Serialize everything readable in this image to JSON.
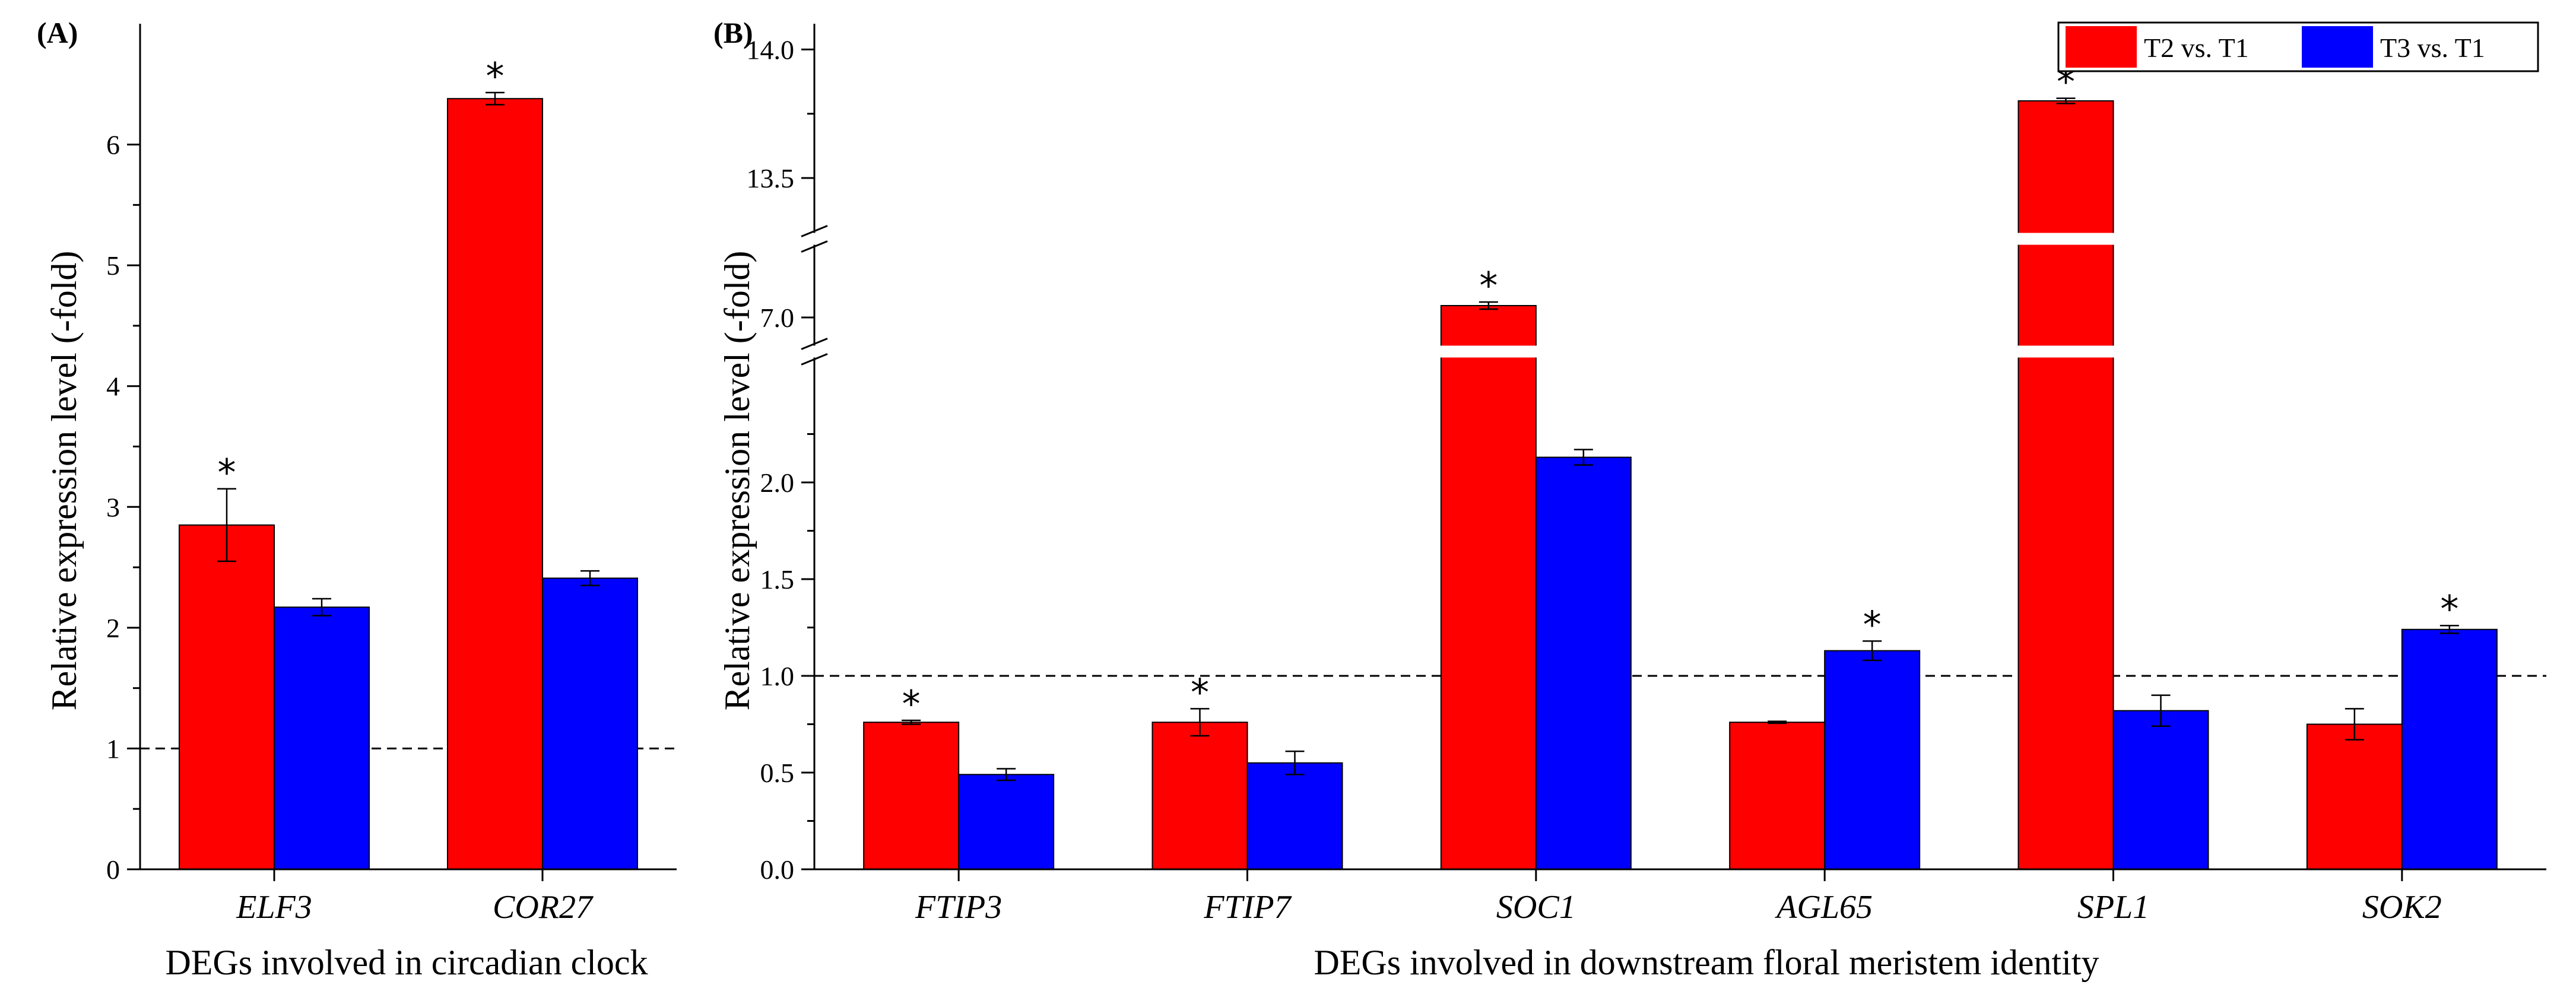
{
  "colors": {
    "t2": "#ff0000",
    "t3": "#0000ff",
    "axis": "#000000"
  },
  "legend": {
    "items": [
      "T2 vs. T1",
      "T3 vs. T1"
    ],
    "placement": "top-right"
  },
  "chart_data": [
    {
      "type": "bar",
      "panel_label": "(A)",
      "xlabel": "DEGs involved in circadian clock",
      "ylabel": "Relative expression level (-fold)",
      "ylim": [
        0,
        7
      ],
      "yticks": [
        0,
        1,
        2,
        3,
        4,
        5,
        6
      ],
      "ytick_labels": [
        "0",
        "1",
        "2",
        "3",
        "4",
        "5",
        "6"
      ],
      "reference_line": 1,
      "categories": [
        "ELF3",
        "COR27"
      ],
      "series": [
        {
          "name": "T2 vs. T1",
          "values": [
            2.85,
            6.38
          ],
          "errors": [
            0.3,
            0.05
          ],
          "significant": [
            true,
            true
          ]
        },
        {
          "name": "T3 vs. T1",
          "values": [
            2.17,
            2.41
          ],
          "errors": [
            0.07,
            0.06
          ],
          "significant": [
            false,
            false
          ]
        }
      ]
    },
    {
      "type": "bar",
      "panel_label": "(B)",
      "xlabel": "DEGs involved in downstream floral meristem identity",
      "ylabel": "Relative expression level (-fold)",
      "broken_axis": true,
      "segments": [
        {
          "range": [
            0,
            2.5
          ],
          "ticks": [
            0,
            0.5,
            1,
            1.5,
            2
          ],
          "tick_labels": [
            "0.0",
            "0.5",
            "1.0",
            "1.5",
            "2.0"
          ]
        },
        {
          "range": [
            7.0,
            7.15
          ],
          "ticks": [
            7.0
          ],
          "tick_labels": [
            "7.0"
          ]
        },
        {
          "range": [
            13.5,
            14.1
          ],
          "ticks": [
            13.5,
            14.0
          ],
          "tick_labels": [
            "13.5",
            "14.0"
          ]
        }
      ],
      "reference_line": 1,
      "categories": [
        "FTIP3",
        "FTIP7",
        "SOC1",
        "AGL65",
        "SPL1",
        "SOK2"
      ],
      "series": [
        {
          "name": "T2 vs. T1",
          "values": [
            0.76,
            0.76,
            7.1,
            0.76,
            13.8,
            0.75
          ],
          "errors": [
            0.01,
            0.07,
            0.03,
            0.005,
            0.01,
            0.08
          ],
          "significant": [
            true,
            true,
            true,
            false,
            true,
            false
          ]
        },
        {
          "name": "T3 vs. T1",
          "values": [
            0.49,
            0.55,
            2.13,
            1.13,
            0.82,
            1.24
          ],
          "errors": [
            0.03,
            0.06,
            0.04,
            0.05,
            0.08,
            0.02
          ],
          "significant": [
            false,
            false,
            false,
            true,
            false,
            true
          ]
        }
      ]
    }
  ]
}
